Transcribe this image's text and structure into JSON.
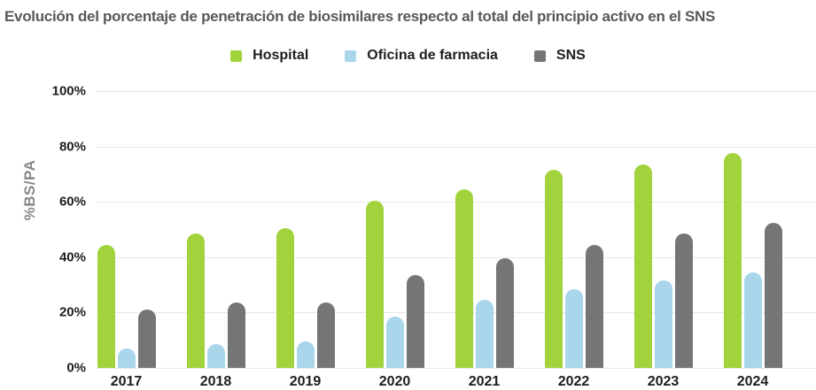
{
  "title": "Evolución del porcentaje de penetración de biosimilares respecto al total del principio activo en el SNS",
  "colors": {
    "hospital": "#a2d33c",
    "farmacia": "#a9d6ea",
    "sns": "#747577",
    "title_text": "#58595b",
    "axis_title_text": "#85878a",
    "tick_text": "#1d1d1b",
    "gridline": "#e7e7e7"
  },
  "chart_data": {
    "type": "bar",
    "title": "Evolución del porcentaje de penetración de biosimilares respecto al total del principio activo en el SNS",
    "categories": [
      "2017",
      "2018",
      "2019",
      "2020",
      "2021",
      "2022",
      "2023",
      "2024"
    ],
    "series": [
      {
        "key": "hospital",
        "name": "Hospital",
        "values": [
          44.5,
          48.5,
          50.5,
          60.5,
          64.5,
          71.5,
          73.5,
          77.5
        ]
      },
      {
        "key": "farmacia",
        "name": "Oficina de farmacia",
        "values": [
          7,
          8.5,
          9.5,
          18.5,
          24.5,
          28.5,
          31.5,
          34.5
        ]
      },
      {
        "key": "sns",
        "name": "SNS",
        "values": [
          21,
          23.5,
          23.5,
          33.5,
          39.5,
          44.5,
          48.5,
          52.5
        ]
      }
    ],
    "xlabel": "",
    "ylabel": "%BS/PA",
    "ylim": [
      0,
      100
    ],
    "ytick_values": [
      100,
      80,
      60,
      40,
      20,
      0
    ],
    "ytick_suffix": "%",
    "grid": true,
    "legend_position": "top"
  }
}
